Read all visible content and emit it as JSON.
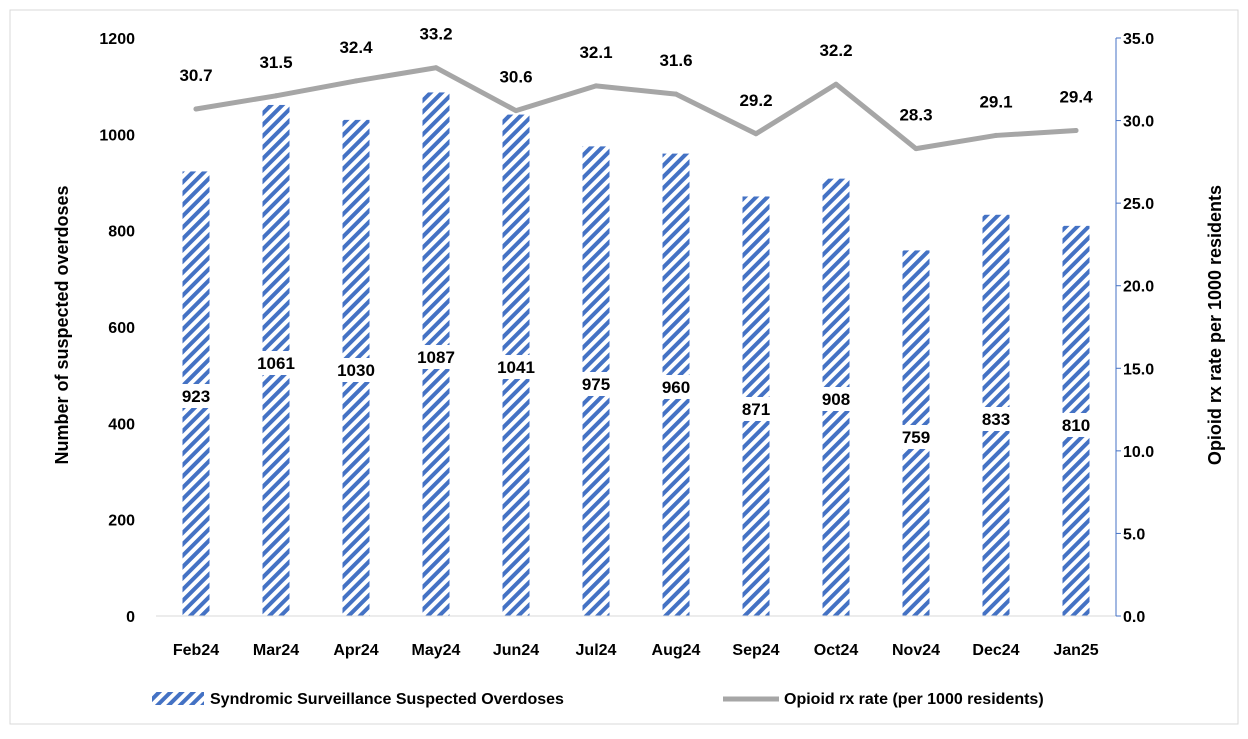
{
  "chart_data": {
    "type": "bar",
    "categories": [
      "Feb24",
      "Mar24",
      "Apr24",
      "May24",
      "Jun24",
      "Jul24",
      "Aug24",
      "Sep24",
      "Oct24",
      "Nov24",
      "Dec24",
      "Jan25"
    ],
    "series": [
      {
        "name": "Syndromic Surveillance Suspected Overdoses",
        "type": "bar",
        "axis": "left",
        "color": "#4472C4",
        "pattern": "diagonal-stripes",
        "values": [
          923,
          1061,
          1030,
          1087,
          1041,
          975,
          960,
          871,
          908,
          759,
          833,
          810
        ],
        "labels": [
          "923",
          "1061",
          "1030",
          "1087",
          "1041",
          "975",
          "960",
          "871",
          "908",
          "759",
          "833",
          "810"
        ]
      },
      {
        "name": "Opioid rx rate (per 1000 residents)",
        "type": "line",
        "axis": "right",
        "color": "#A6A6A6",
        "values": [
          30.7,
          31.5,
          32.4,
          33.2,
          30.6,
          32.1,
          31.6,
          29.2,
          32.2,
          28.3,
          29.1,
          29.4
        ],
        "labels": [
          "30.7",
          "31.5",
          "32.4",
          "33.2",
          "30.6",
          "32.1",
          "31.6",
          "29.2",
          "32.2",
          "28.3",
          "29.1",
          "29.4"
        ]
      }
    ],
    "ylabel": "Number of suspected overdoses",
    "ylabel_right": "Opioid rx rate per 1000 residents",
    "ylim": [
      0,
      1200
    ],
    "ylim_right": [
      0,
      35
    ],
    "yticks": [
      "0",
      "200",
      "400",
      "600",
      "800",
      "1000",
      "1200"
    ],
    "yticks_right": [
      "0.0",
      "5.0",
      "10.0",
      "15.0",
      "20.0",
      "25.0",
      "30.0",
      "35.0"
    ],
    "grid": false,
    "legend_position": "bottom"
  }
}
